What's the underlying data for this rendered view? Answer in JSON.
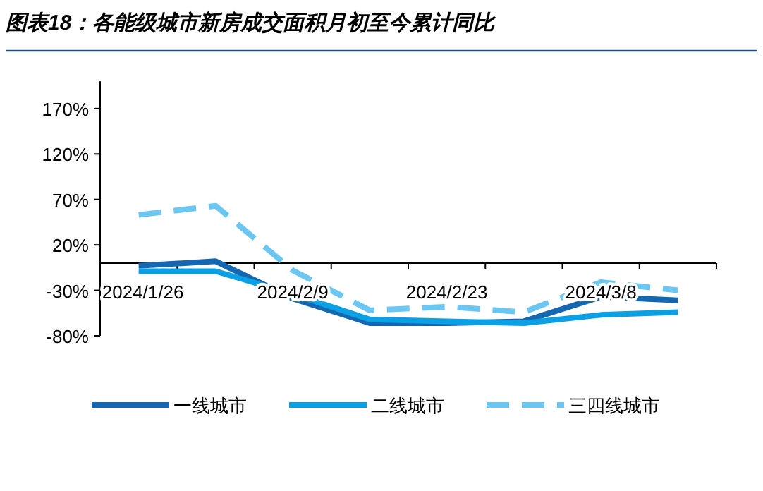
{
  "chart_data": {
    "type": "line",
    "title": "图表18：各能级城市新房成交面积月初至今累计同比",
    "categories": [
      "2024/1/26",
      null,
      "2024/2/9",
      null,
      "2024/2/23",
      null,
      "2024/3/8",
      null
    ],
    "series": [
      {
        "name": "一线城市",
        "color": "#1467b0",
        "line_style": "solid",
        "values": [
          -3,
          2,
          -39,
          -66,
          -66,
          -64,
          -37,
          -41
        ]
      },
      {
        "name": "二线城市",
        "color": "#0b9fe3",
        "line_style": "solid",
        "values": [
          -9,
          -9,
          -34,
          -62,
          -64,
          -66,
          -57,
          -54
        ]
      },
      {
        "name": "三四线城市",
        "color": "#6cc6f2",
        "line_style": "dashed",
        "values": [
          53,
          63,
          -8,
          -52,
          -48,
          -54,
          -21,
          -30
        ]
      }
    ],
    "ylim": [
      -80,
      200
    ],
    "yticks": [
      {
        "value": -80,
        "label": "-80%"
      },
      {
        "value": -30,
        "label": "-30%"
      },
      {
        "value": 20,
        "label": "20%"
      },
      {
        "value": 70,
        "label": "70%"
      },
      {
        "value": 120,
        "label": "120%"
      },
      {
        "value": 170,
        "label": "170%"
      }
    ],
    "legend": "bottom"
  }
}
